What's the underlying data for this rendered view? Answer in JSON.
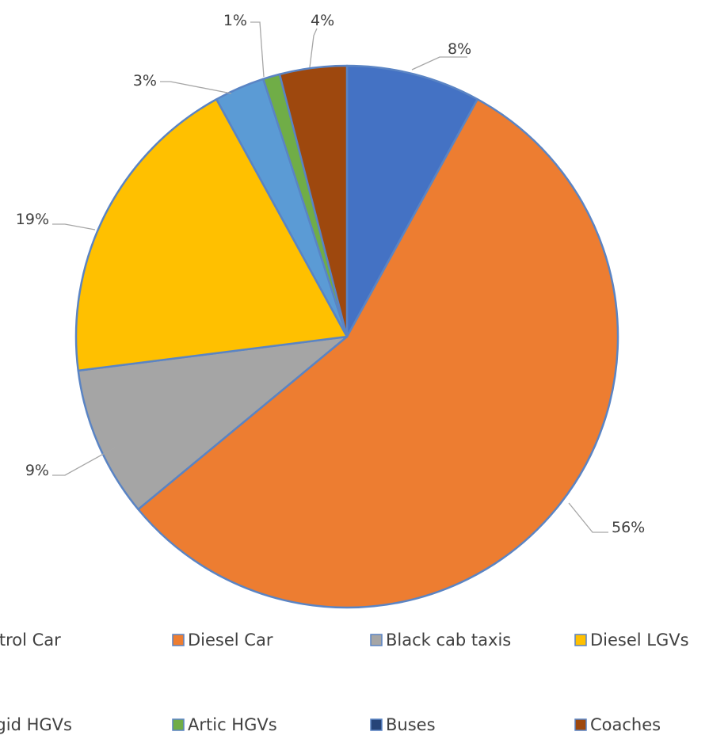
{
  "chart_data": {
    "type": "pie",
    "title": "",
    "slices": [
      {
        "label": "Petrol Car",
        "value": 8,
        "display": "8%",
        "color": "#4472C4"
      },
      {
        "label": "Diesel Car",
        "value": 56,
        "display": "56%",
        "color": "#ED7D31"
      },
      {
        "label": "Black cab taxis",
        "value": 9,
        "display": "9%",
        "color": "#A5A5A5"
      },
      {
        "label": "Diesel LGVs",
        "value": 19,
        "display": "19%",
        "color": "#FFC000"
      },
      {
        "label": "Rigid HGVs",
        "value": 3,
        "display": "3%",
        "color": "#5B9BD5"
      },
      {
        "label": "Artic HGVs",
        "value": 1,
        "display": "1%",
        "color": "#70AD47"
      },
      {
        "label": "Buses",
        "value": 0,
        "display": "",
        "color": "#264478"
      },
      {
        "label": "Coaches",
        "value": 4,
        "display": "4%",
        "color": "#9E480E"
      }
    ],
    "legend_position": "bottom",
    "slice_border_color": "#5A84C4"
  }
}
